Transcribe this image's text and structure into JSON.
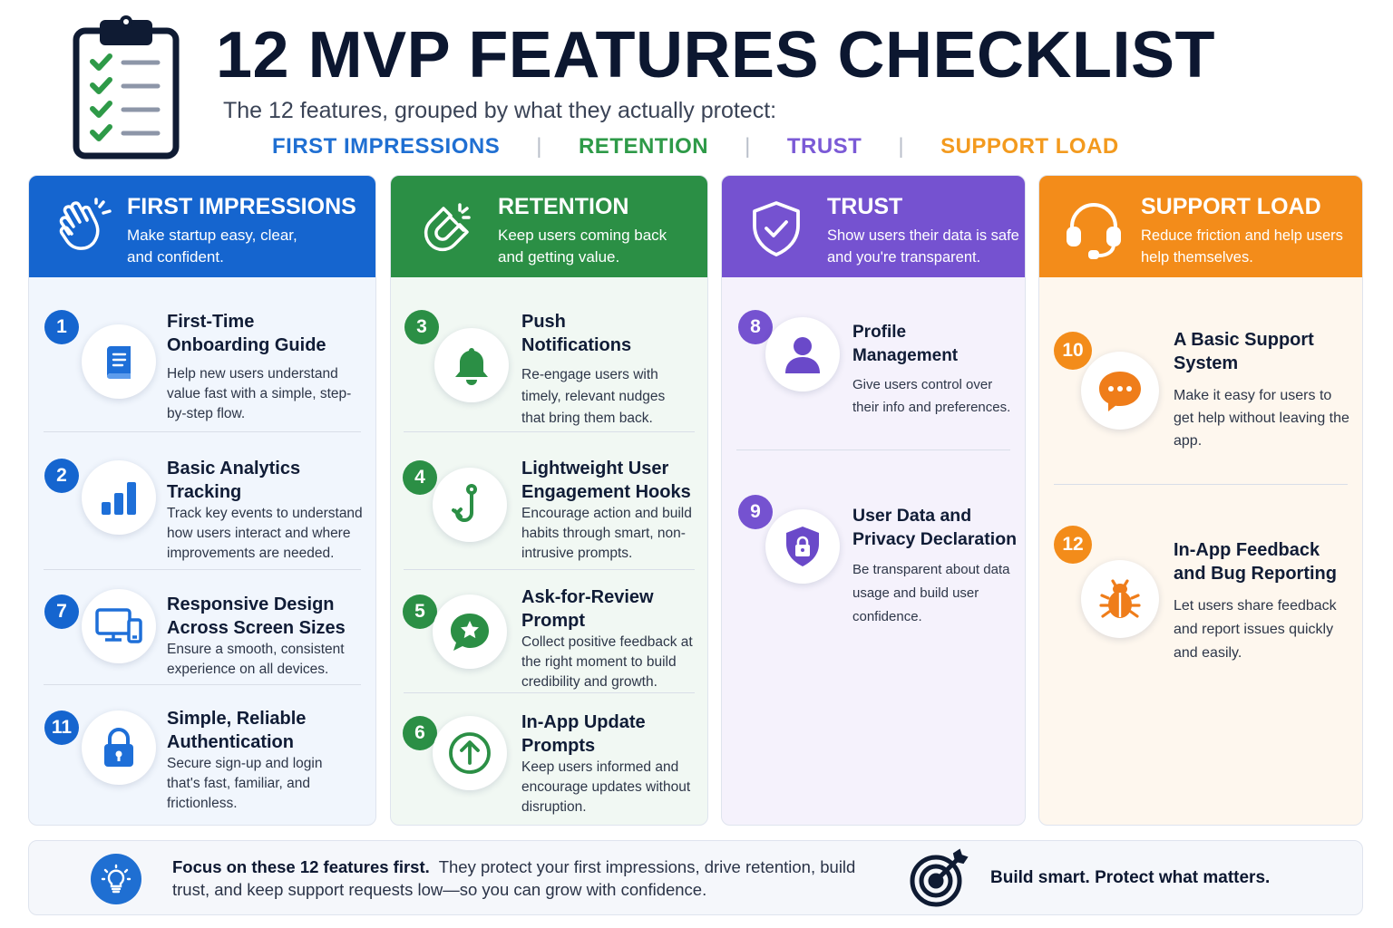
{
  "header": {
    "title": "12 MVP FEATURES CHECKLIST",
    "subtitle": "The 12 features, grouped by what they actually protect:",
    "legend": [
      {
        "label": "FIRST IMPRESSIONS",
        "color": "#1f6fd2"
      },
      {
        "label": "RETENTION",
        "color": "#2e9a48"
      },
      {
        "label": "TRUST",
        "color": "#7b5ad6"
      },
      {
        "label": "SUPPORT LOAD",
        "color": "#f39a1e"
      }
    ],
    "separator": "|"
  },
  "colors": {
    "blue": "#1565cf",
    "green": "#2b8f45",
    "purple": "#7552d0",
    "orange": "#f38c1a",
    "blue_bg": "#f1f6fd",
    "green_bg": "#f1f8f3",
    "purple_bg": "#f5f2fc",
    "orange_bg": "#fef7ee"
  },
  "columns": [
    {
      "title": "FIRST IMPRESSIONS",
      "desc": "Make startup easy, clear, and confident.",
      "icon": "waving-hand-icon",
      "items": [
        {
          "num": "1",
          "title": "First-Time Onboarding Guide",
          "desc": "Help new users understand value fast with a simple, step-by-step flow.",
          "icon": "guide-book-icon"
        },
        {
          "num": "2",
          "title": "Basic Analytics Tracking",
          "desc": "Track key events to understand how users interact and where improvements are needed.",
          "icon": "bar-chart-icon"
        },
        {
          "num": "7",
          "title": "Responsive Design Across Screen Sizes",
          "desc": "Ensure a smooth, consistent experience on all devices.",
          "icon": "devices-icon"
        },
        {
          "num": "11",
          "title": "Simple, Reliable Authentication",
          "desc": "Secure sign-up and login that's fast, familiar, and frictionless.",
          "icon": "padlock-icon"
        }
      ]
    },
    {
      "title": "RETENTION",
      "desc": "Keep users coming back and getting value.",
      "icon": "magnet-icon",
      "items": [
        {
          "num": "3",
          "title": "Push Notifications",
          "desc": "Re-engage users with timely, relevant nudges that bring them back.",
          "icon": "bell-icon"
        },
        {
          "num": "4",
          "title": "Lightweight User Engagement Hooks",
          "desc": "Encourage action and build habits through smart, non-intrusive prompts.",
          "icon": "hook-icon"
        },
        {
          "num": "5",
          "title": "Ask-for-Review Prompt",
          "desc": "Collect positive feedback at the right moment to build credibility and growth.",
          "icon": "star-bubble-icon"
        },
        {
          "num": "6",
          "title": "In-App Update Prompts",
          "desc": "Keep users informed and encourage updates without disruption.",
          "icon": "arrow-up-circle-icon"
        }
      ]
    },
    {
      "title": "TRUST",
      "desc": "Show users their data is safe and you're transparent.",
      "icon": "shield-check-icon",
      "items": [
        {
          "num": "8",
          "title": "Profile Management",
          "desc": "Give users control over their info and preferences.",
          "icon": "user-icon"
        },
        {
          "num": "9",
          "title": "User Data and Privacy Declaration",
          "desc": "Be transparent about data usage and build user confidence.",
          "icon": "shield-lock-icon"
        }
      ]
    },
    {
      "title": "SUPPORT LOAD",
      "desc": "Reduce friction and help users help themselves.",
      "icon": "headset-icon",
      "items": [
        {
          "num": "10",
          "title": "A Basic Support System",
          "desc": "Make it easy for users to get help without leaving the app.",
          "icon": "chat-bubble-icon"
        },
        {
          "num": "12",
          "title": "In-App Feedback and Bug Reporting",
          "desc": "Let users share feedback and report issues quickly and easily.",
          "icon": "bug-icon"
        }
      ]
    }
  ],
  "footer": {
    "bold": "Focus on these 12 features first.",
    "text": "They protect your first impressions, drive retention, build trust, and keep support requests low—so you can grow with confidence.",
    "callout": "Build smart. Protect what matters.",
    "icons": [
      "lightbulb-icon",
      "target-icon"
    ]
  }
}
